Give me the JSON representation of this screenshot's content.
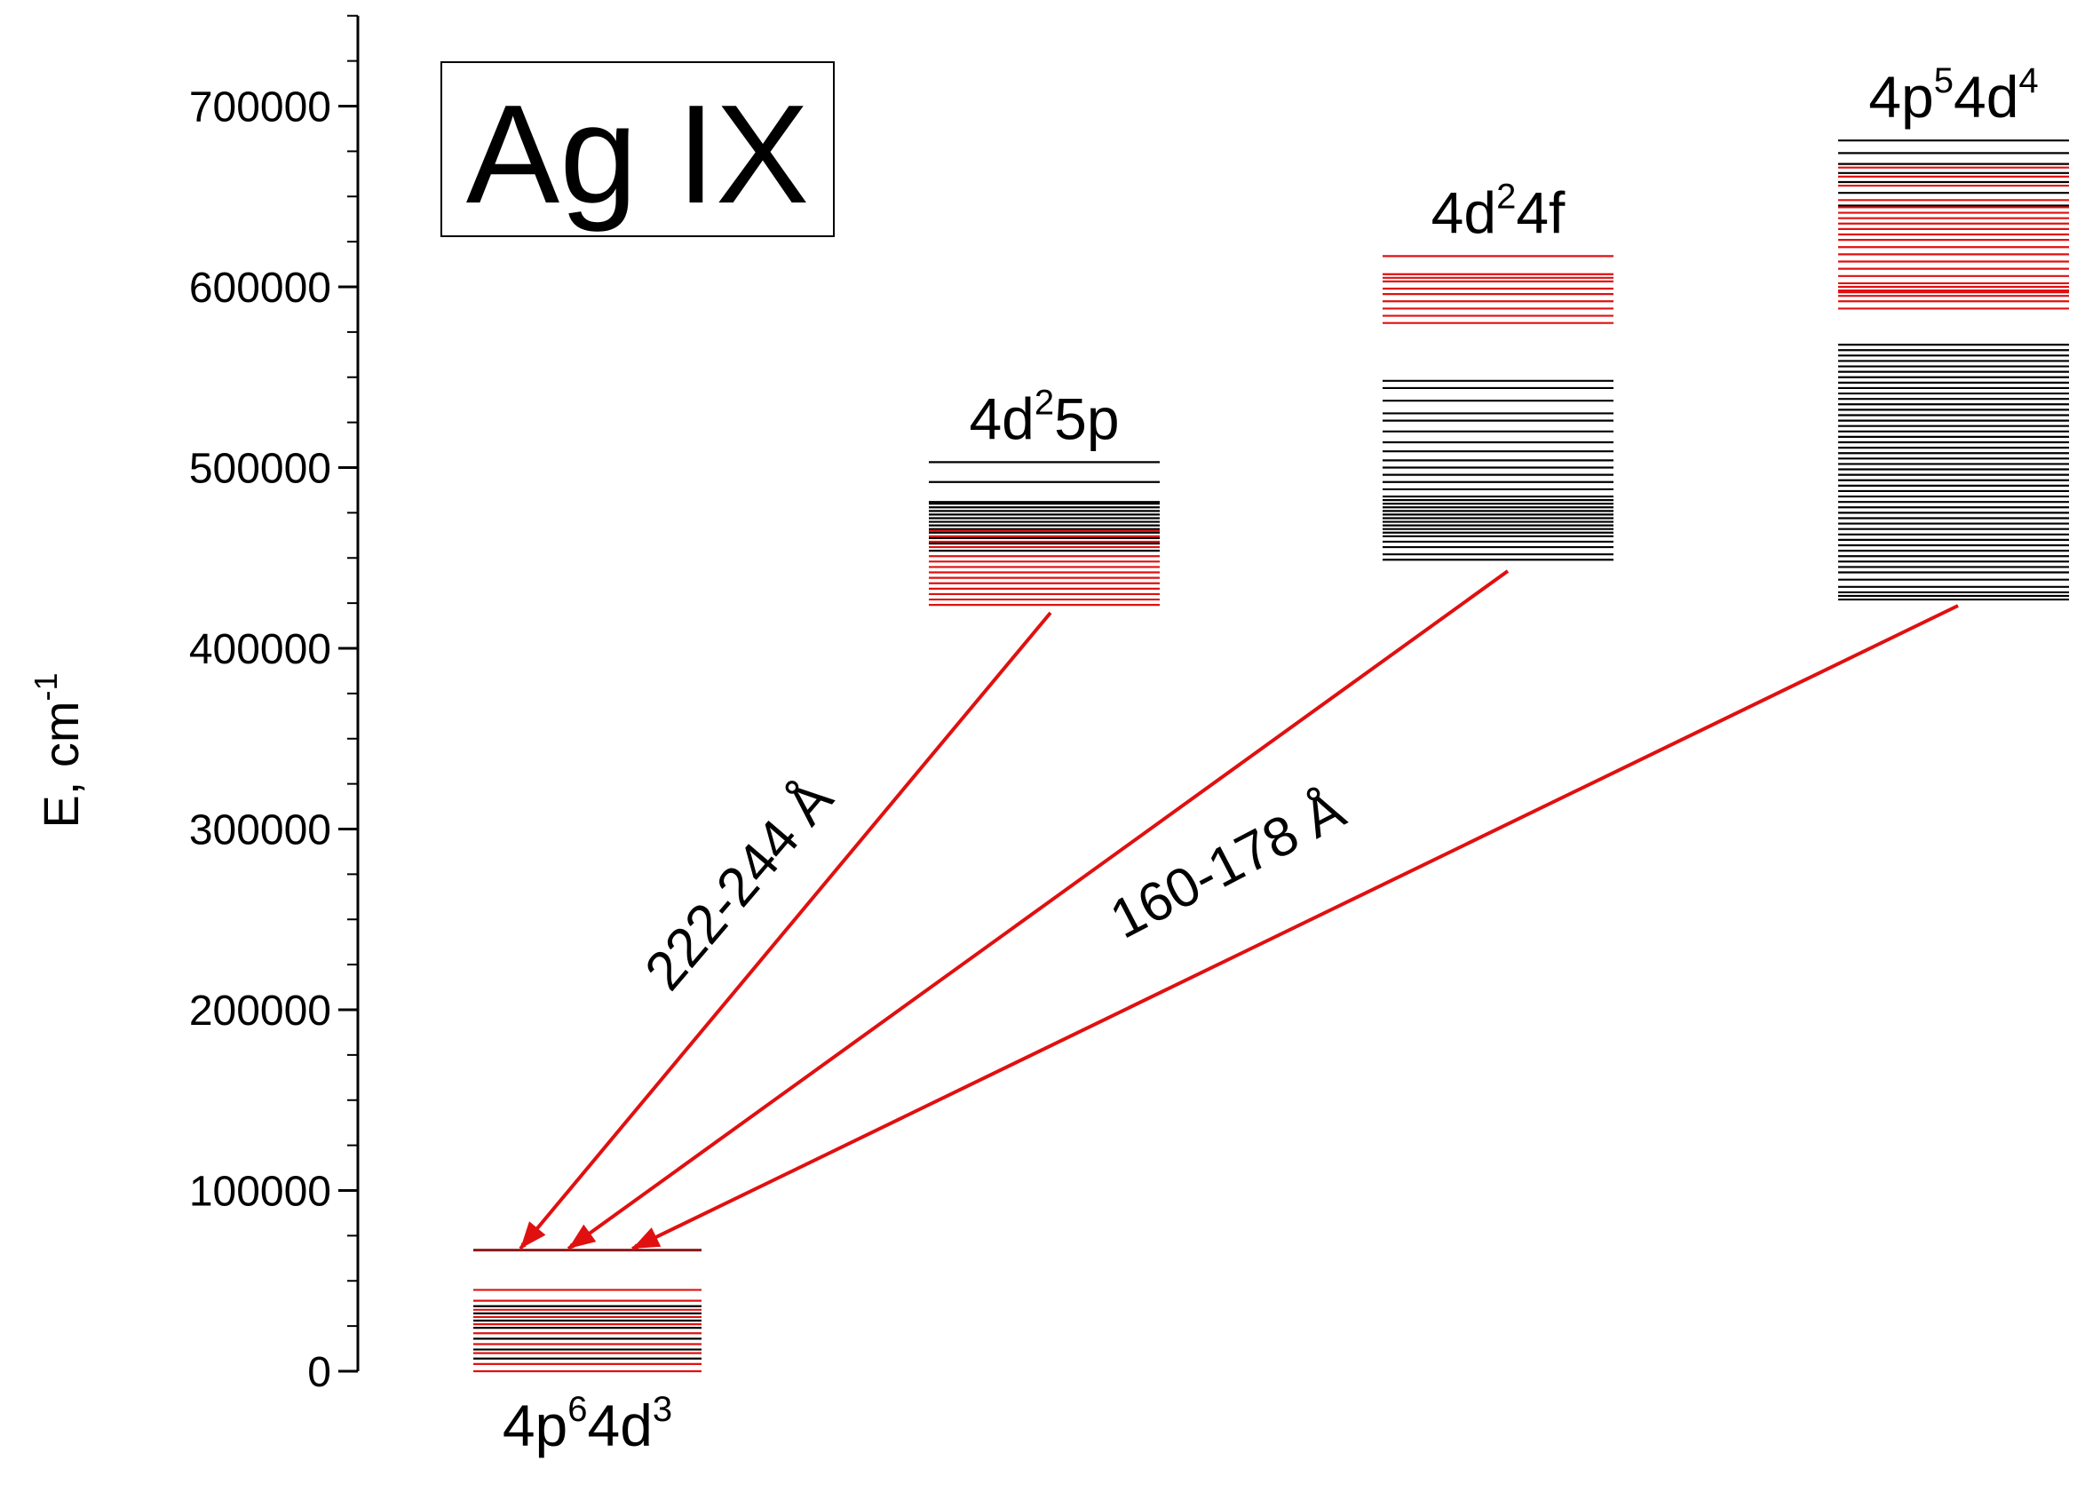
{
  "title": "Ag IX",
  "colors": {
    "axis": "#000000",
    "odd_levels": "#000000",
    "even_levels": "#e01010",
    "arrow": "#e01010"
  },
  "axis": {
    "ylabel": "E, cm",
    "ylabel_sup": "-1",
    "ylim": [
      0,
      750000
    ],
    "major_step": 100000,
    "minor_step": 50000,
    "ticks": [
      {
        "value": 0,
        "label": "0"
      },
      {
        "value": 100000,
        "label": "100000"
      },
      {
        "value": 200000,
        "label": "200000"
      },
      {
        "value": 300000,
        "label": "300000"
      },
      {
        "value": 400000,
        "label": "400000"
      },
      {
        "value": 500000,
        "label": "500000"
      },
      {
        "value": 600000,
        "label": "600000"
      },
      {
        "value": 700000,
        "label": "700000"
      }
    ]
  },
  "configurations": [
    {
      "id": "ground",
      "label_parts": [
        {
          "t": "4p",
          "sup": false
        },
        {
          "t": "6",
          "sup": true
        },
        {
          "t": "4d",
          "sup": false
        },
        {
          "t": "3",
          "sup": true
        }
      ],
      "label_position": "below",
      "range": [
        0,
        67000
      ],
      "black_levels": [
        7000,
        12000,
        18000,
        24000,
        28000,
        32000,
        36000
      ],
      "red_levels": [
        0,
        4000,
        10000,
        15000,
        21000,
        26000,
        30000,
        34000,
        39000,
        45000
      ],
      "dark_red_levels": [
        67000
      ]
    },
    {
      "id": "4d2-5p",
      "label_parts": [
        {
          "t": "4d",
          "sup": false
        },
        {
          "t": "2",
          "sup": true
        },
        {
          "t": "5p",
          "sup": false
        }
      ],
      "label_position": "above",
      "range": [
        424000,
        503000
      ],
      "black_levels": [
        454000,
        458000,
        461000,
        464000,
        466000,
        468000,
        470000,
        472000,
        474000,
        476000,
        478000,
        480000,
        481000,
        492000,
        503000
      ],
      "red_levels": [
        424000,
        427000,
        430000,
        433000,
        436000,
        439000,
        442000,
        445000,
        448000,
        451000,
        456000,
        459000,
        462000,
        465000
      ],
      "dark_red_levels": []
    },
    {
      "id": "4d2-4f",
      "label_parts": [
        {
          "t": "4d",
          "sup": false
        },
        {
          "t": "2",
          "sup": true
        },
        {
          "t": "4f",
          "sup": false
        }
      ],
      "label_position": "above",
      "range": [
        449000,
        617000
      ],
      "black_levels": [
        449000,
        452000,
        456000,
        459000,
        462000,
        464000,
        466000,
        468000,
        470000,
        472000,
        474000,
        476000,
        478000,
        480000,
        482000,
        484000,
        488000,
        492000,
        496000,
        500000,
        504000,
        509000,
        514000,
        520000,
        526000,
        530000,
        537000,
        544000,
        548000
      ],
      "red_levels": [
        580000,
        584000,
        588000,
        592000,
        596000,
        599000,
        603000,
        605000,
        607000,
        617000
      ],
      "dark_red_levels": []
    },
    {
      "id": "4p5-4d4",
      "label_parts": [
        {
          "t": "4p",
          "sup": false
        },
        {
          "t": "5",
          "sup": true
        },
        {
          "t": "4d",
          "sup": false
        },
        {
          "t": "4",
          "sup": true
        }
      ],
      "label_position": "above",
      "range": [
        427000,
        681000
      ],
      "black_levels": [
        427000,
        429000,
        431000,
        434000,
        438000,
        442000,
        445000,
        448000,
        451000,
        454000,
        457000,
        460000,
        463000,
        466000,
        469000,
        472000,
        475000,
        478000,
        481000,
        484000,
        487000,
        490000,
        493000,
        496000,
        499000,
        502000,
        505000,
        508000,
        511000,
        514000,
        517000,
        520000,
        523000,
        526000,
        529000,
        532000,
        535000,
        538000,
        541000,
        544000,
        547000,
        550000,
        553000,
        556000,
        559000,
        562000,
        565000,
        568000,
        645000,
        652000,
        658000,
        663000,
        668000,
        674000,
        681000
      ],
      "red_levels": [
        588000,
        592000,
        595000,
        597000,
        598000,
        600000,
        602000,
        606000,
        610000,
        614000,
        618000,
        622000,
        626000,
        629000,
        632000,
        635000,
        638000,
        641000,
        644000,
        648000,
        656000,
        661000,
        666000
      ],
      "dark_red_levels": []
    }
  ],
  "transitions": [
    {
      "from": "4d2-5p",
      "to": "ground",
      "label": "222-244 Å"
    },
    {
      "from": "4d2-4f",
      "to": "ground",
      "label": ""
    },
    {
      "from": "4p5-4d4",
      "to": "ground",
      "label": "160-178 Å"
    }
  ]
}
